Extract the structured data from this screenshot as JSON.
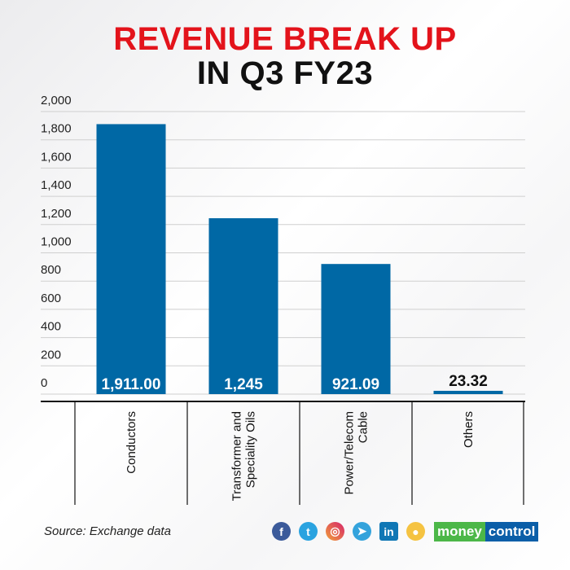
{
  "title_line1": "REVENUE BREAK UP",
  "title_line2": "IN Q3 FY23",
  "source": "Source: Exchange data",
  "social_icons": [
    "facebook-icon",
    "twitter-icon",
    "instagram-icon",
    "telegram-icon",
    "linkedin-icon",
    "koo-icon"
  ],
  "logo": {
    "part1": "money",
    "part2": "control"
  },
  "colors": {
    "bar": "#0068a5",
    "title_accent": "#e3131b",
    "logo_green": "#4cb748",
    "logo_blue": "#0b5ea8"
  },
  "chart_data": {
    "type": "bar",
    "categories": [
      "Conductors",
      "Transformer and Speciality Oils",
      "Power/Telecom Cable",
      "Others"
    ],
    "category_lines": [
      [
        "Conductors"
      ],
      [
        "Transformer and",
        "Speciality Oils"
      ],
      [
        "Power/Telecom",
        "Cable"
      ],
      [
        "Others"
      ]
    ],
    "values": [
      1911.0,
      1245,
      921.09,
      23.32
    ],
    "data_labels": [
      "1,911.00",
      "1,245",
      "921.09",
      "23.32"
    ],
    "yticks": [
      "0",
      "200",
      "400",
      "600",
      "800",
      "1,000",
      "1,200",
      "1,400",
      "1,600",
      "1,800",
      "2,000"
    ],
    "ylim": [
      0,
      2000
    ],
    "grid": true
  }
}
